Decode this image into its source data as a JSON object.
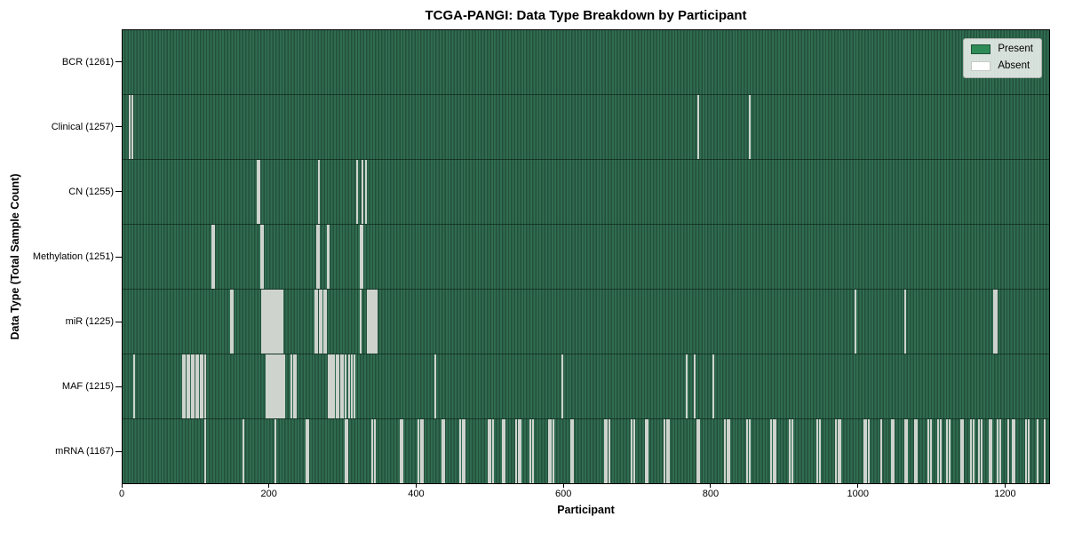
{
  "title": "TCGA-PANGI: Data Type Breakdown by Participant",
  "xlabel": "Participant",
  "ylabel": "Data Type (Total Sample Count)",
  "legend": {
    "items": [
      {
        "label": "Present",
        "color": "#2e8b57"
      },
      {
        "label": "Absent",
        "color": "#ffffff"
      }
    ]
  },
  "colors": {
    "present": "#2e8b57",
    "absent": "#ffffff",
    "bar_texture_light": "#306c50",
    "bar_texture_dark": "#23503b",
    "absent_stripe": "#d5dad5",
    "axis": "#000000",
    "background": "#ffffff"
  },
  "chart_data": {
    "type": "heatmap",
    "title": "TCGA-PANGI: Data Type Breakdown by Participant",
    "xlabel": "Participant",
    "ylabel": "Data Type (Total Sample Count)",
    "legend": [
      "Present",
      "Absent"
    ],
    "legend_position": "upper right",
    "grid": false,
    "xlim": [
      0,
      1261
    ],
    "x_ticks": [
      0,
      200,
      400,
      600,
      800,
      1000,
      1200
    ],
    "total_participants": 1261,
    "y_categories": [
      "BCR (1261)",
      "Clinical (1257)",
      "CN (1255)",
      "Methylation (1251)",
      "miR (1225)",
      "MAF (1215)",
      "mRNA (1167)"
    ],
    "rows": [
      {
        "data_type": "BCR",
        "label": "BCR (1261)",
        "present_count": 1261,
        "absent_count": 0,
        "absent_positions": []
      },
      {
        "data_type": "Clinical",
        "label": "Clinical (1257)",
        "present_count": 1257,
        "absent_count": 4,
        "absent_positions": [
          10,
          13,
          784,
          854
        ]
      },
      {
        "data_type": "CN",
        "label": "CN (1255)",
        "present_count": 1255,
        "absent_count": 6,
        "absent_positions": [
          184,
          186,
          267,
          319,
          326,
          331
        ]
      },
      {
        "data_type": "Methylation",
        "label": "Methylation (1251)",
        "present_count": 1251,
        "absent_count": 10,
        "absent_positions": [
          122,
          124,
          189,
          191,
          265,
          267,
          279,
          281,
          324,
          326
        ]
      },
      {
        "data_type": "miR",
        "label": "miR (1225)",
        "present_count": 1225,
        "absent_count": 36,
        "absent_positions": [
          147,
          150,
          190,
          192,
          194,
          196,
          198,
          200,
          202,
          204,
          206,
          208,
          210,
          212,
          214,
          216,
          218,
          262,
          265,
          268,
          271,
          274,
          277,
          324,
          334,
          336,
          338,
          340,
          342,
          344,
          346,
          997,
          1065,
          1186,
          1188,
          1190
        ]
      },
      {
        "data_type": "MAF",
        "label": "MAF (1215)",
        "present_count": 1215,
        "absent_count": 46,
        "absent_positions": [
          16,
          82,
          85,
          88,
          91,
          94,
          97,
          100,
          103,
          106,
          109,
          112,
          196,
          198,
          200,
          202,
          204,
          206,
          208,
          210,
          212,
          214,
          216,
          218,
          220,
          230,
          233,
          236,
          280,
          282,
          284,
          286,
          288,
          291,
          294,
          297,
          300,
          304,
          308,
          312,
          316,
          425,
          598,
          768,
          779,
          804
        ]
      },
      {
        "data_type": "mRNA",
        "label": "mRNA (1167)",
        "present_count": 1167,
        "absent_count": 94,
        "absent_positions": [
          113,
          164,
          208,
          250,
          253,
          303,
          306,
          340,
          343,
          378,
          381,
          403,
          406,
          409,
          435,
          438,
          460,
          463,
          466,
          498,
          501,
          504,
          517,
          520,
          536,
          539,
          542,
          555,
          558,
          580,
          583,
          586,
          610,
          613,
          656,
          659,
          662,
          693,
          696,
          712,
          715,
          738,
          741,
          744,
          782,
          785,
          820,
          823,
          826,
          850,
          853,
          883,
          886,
          889,
          908,
          911,
          946,
          949,
          971,
          974,
          977,
          1009,
          1012,
          1015,
          1033,
          1047,
          1050,
          1065,
          1068,
          1078,
          1081,
          1097,
          1100,
          1110,
          1113,
          1122,
          1125,
          1141,
          1144,
          1155,
          1158,
          1166,
          1169,
          1180,
          1183,
          1191,
          1194,
          1205,
          1211,
          1214,
          1230,
          1233,
          1245,
          1255
        ]
      }
    ]
  }
}
